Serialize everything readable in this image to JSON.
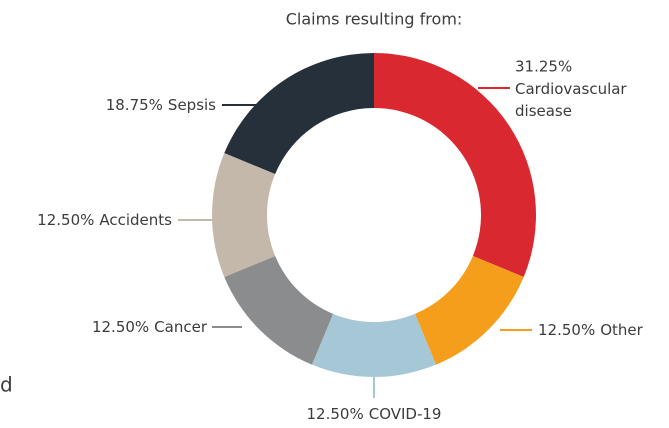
{
  "side_text": "d",
  "chart_data": {
    "type": "donut",
    "title": "Claims resulting from:",
    "categories": [
      "Cardiovascular disease",
      "Other",
      "COVID-19",
      "Cancer",
      "Accidents",
      "Sepsis"
    ],
    "values": [
      31.25,
      12.5,
      12.5,
      12.5,
      12.5,
      18.75
    ],
    "value_labels": [
      "31.25%",
      "12.50%",
      "12.50%",
      "12.50%",
      "12.50%",
      "18.75%"
    ],
    "colors": [
      "#d9282f",
      "#f59e1c",
      "#a6c8d6",
      "#8a8c8e",
      "#c4b8aa",
      "#26303b"
    ]
  }
}
